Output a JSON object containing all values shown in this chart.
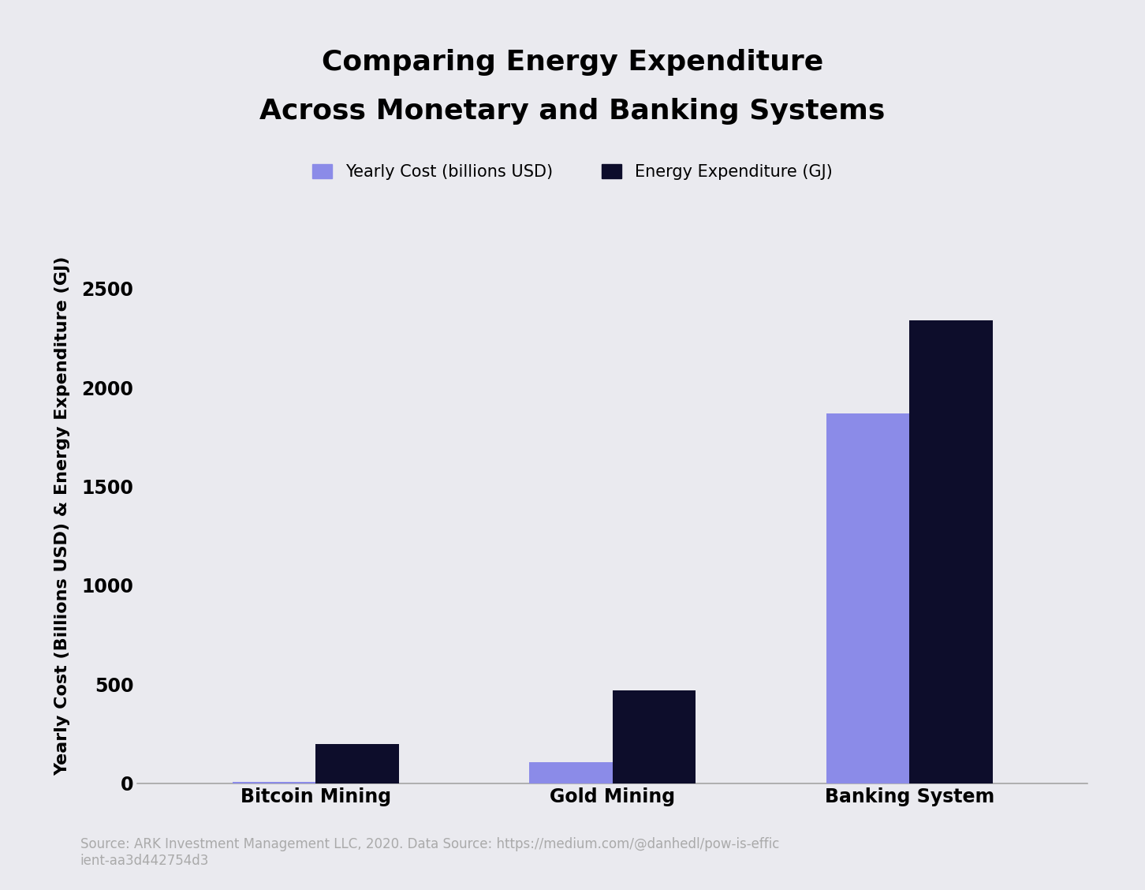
{
  "title_line1": "Comparing Energy Expenditure",
  "title_line2": "Across Monetary and Banking Systems",
  "categories": [
    "Bitcoin Mining",
    "Gold Mining",
    "Banking System"
  ],
  "yearly_cost": [
    5,
    105,
    1870
  ],
  "energy_expenditure": [
    200,
    470,
    2340
  ],
  "bar_color_cost": "#8b8be8",
  "bar_color_energy": "#0d0d2b",
  "ylabel": "Yearly Cost (Billions USD) & Energy Expenditure (GJ)",
  "legend_cost": "Yearly Cost (billions USD)",
  "legend_energy": "Energy Expenditure (GJ)",
  "ylim": [
    0,
    2700
  ],
  "yticks": [
    0,
    500,
    1000,
    1500,
    2000,
    2500
  ],
  "background_color": "#eaeaef",
  "source_text": "Source: ARK Investment Management LLC, 2020. Data Source: https://medium.com/@danhedl/pow-is-effic\nient-aa3d442754d3",
  "title_fontsize": 26,
  "label_fontsize": 16,
  "tick_fontsize": 17,
  "legend_fontsize": 15,
  "source_fontsize": 12,
  "bar_width": 0.28
}
